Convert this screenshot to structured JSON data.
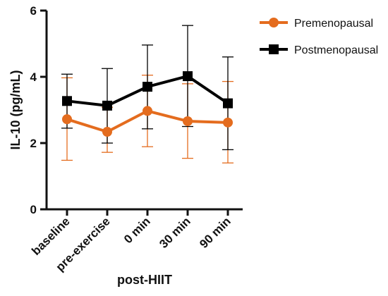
{
  "chart_data": {
    "type": "line",
    "title": "",
    "xlabel": "post-HIIT",
    "ylabel": "IL-10 (pg/mL)",
    "categories": [
      "baseline",
      "pre-exercise",
      "0 min",
      "30 min",
      "90 min"
    ],
    "ylim": [
      0,
      6
    ],
    "yticks": [
      0,
      2,
      4,
      6
    ],
    "grid": false,
    "legend_position": "top-right",
    "series": [
      {
        "name": "Premenopausal",
        "color": "#e46c1e",
        "marker": "circle",
        "values": [
          2.72,
          2.34,
          2.97,
          2.66,
          2.62
        ],
        "err_low": [
          1.48,
          1.72,
          1.89,
          1.54,
          1.4
        ],
        "err_high": [
          3.97,
          3.08,
          4.05,
          3.79,
          3.86
        ]
      },
      {
        "name": "Postmenopausal",
        "color": "#000000",
        "marker": "square",
        "values": [
          3.27,
          3.13,
          3.7,
          4.02,
          3.2
        ],
        "err_low": [
          2.45,
          2.0,
          2.43,
          2.5,
          1.8
        ],
        "err_high": [
          4.08,
          4.25,
          4.96,
          5.55,
          4.6
        ]
      }
    ]
  }
}
